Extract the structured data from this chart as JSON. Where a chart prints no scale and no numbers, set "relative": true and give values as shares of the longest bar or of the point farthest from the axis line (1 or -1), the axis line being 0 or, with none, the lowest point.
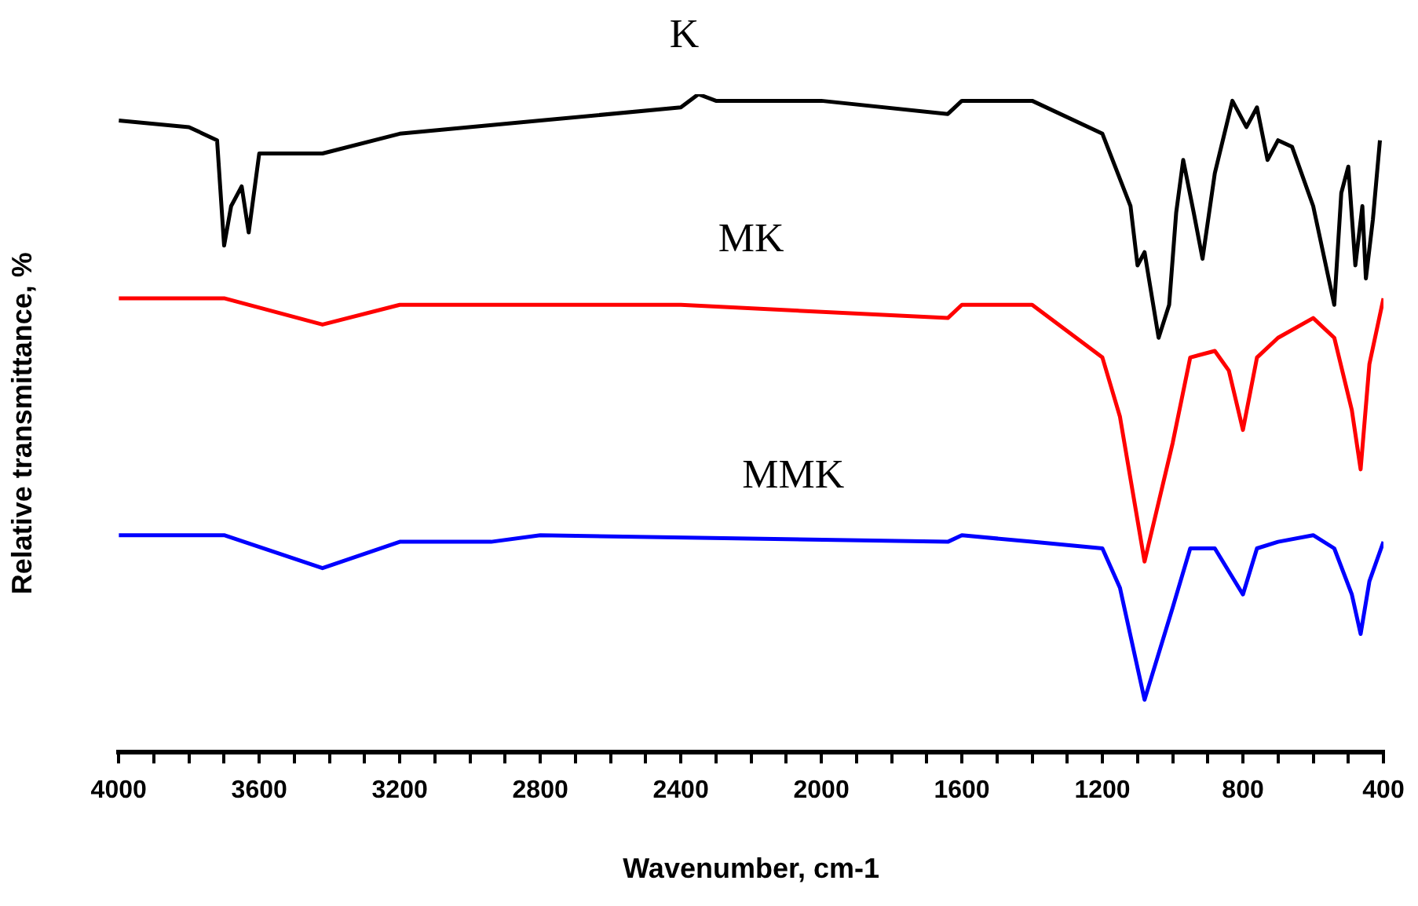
{
  "chart_data": {
    "type": "line",
    "xlabel": "Wavenumber, cm-1",
    "ylabel": "Relative transmittance, %",
    "relative": true,
    "xlim": [
      4000,
      400
    ],
    "xticks": [
      4000,
      {
        "value": 3900,
        "label": null
      },
      {
        "value": 3800,
        "label": null
      },
      {
        "value": 3700,
        "label": null
      },
      3600,
      {
        "value": 3500,
        "label": null
      },
      {
        "value": 3400,
        "label": null
      },
      {
        "value": 3300,
        "label": null
      },
      3200,
      {
        "value": 3100,
        "label": null
      },
      {
        "value": 3000,
        "label": null
      },
      {
        "value": 2900,
        "label": null
      },
      2800,
      {
        "value": 2700,
        "label": null
      },
      {
        "value": 2600,
        "label": null
      },
      {
        "value": 2500,
        "label": null
      },
      2400,
      {
        "value": 2300,
        "label": null
      },
      {
        "value": 2200,
        "label": null
      },
      {
        "value": 2100,
        "label": null
      },
      2000,
      {
        "value": 1900,
        "label": null
      },
      {
        "value": 1800,
        "label": null
      },
      {
        "value": 1700,
        "label": null
      },
      1600,
      {
        "value": 1500,
        "label": null
      },
      {
        "value": 1400,
        "label": null
      },
      {
        "value": 1300,
        "label": null
      },
      1200,
      {
        "value": 1100,
        "label": null
      },
      {
        "value": 1000,
        "label": null
      },
      {
        "value": 900,
        "label": null
      },
      800,
      {
        "value": 700,
        "label": null
      },
      {
        "value": 600,
        "label": null
      },
      {
        "value": 500,
        "label": null
      },
      400
    ],
    "grid": false,
    "legend": false,
    "marker": "none",
    "line_style": "solid",
    "series": [
      {
        "name": "K",
        "color": "#000000",
        "x": [
          4000,
          3800,
          3720,
          3700,
          3680,
          3650,
          3630,
          3600,
          3500,
          3420,
          3200,
          2800,
          2400,
          2350,
          2300,
          2000,
          1640,
          1600,
          1400,
          1200,
          1120,
          1100,
          1080,
          1040,
          1010,
          990,
          970,
          940,
          915,
          880,
          830,
          790,
          760,
          730,
          700,
          660,
          600,
          540,
          520,
          500,
          480,
          460,
          450,
          430,
          410
        ],
        "values": [
          0.96,
          0.95,
          0.93,
          0.77,
          0.83,
          0.86,
          0.79,
          0.91,
          0.91,
          0.91,
          0.94,
          0.96,
          0.98,
          1.0,
          0.99,
          0.99,
          0.97,
          0.99,
          0.99,
          0.94,
          0.83,
          0.74,
          0.76,
          0.63,
          0.68,
          0.82,
          0.9,
          0.82,
          0.75,
          0.88,
          0.99,
          0.95,
          0.98,
          0.9,
          0.93,
          0.92,
          0.83,
          0.68,
          0.85,
          0.89,
          0.74,
          0.83,
          0.72,
          0.81,
          0.93
        ]
      },
      {
        "name": "MK",
        "color": "#ff0000",
        "x": [
          4000,
          3700,
          3420,
          3200,
          2800,
          2400,
          1640,
          1600,
          1400,
          1200,
          1150,
          1080,
          1000,
          950,
          880,
          840,
          800,
          760,
          700,
          600,
          540,
          490,
          465,
          440,
          400
        ],
        "values": [
          0.69,
          0.69,
          0.65,
          0.68,
          0.68,
          0.68,
          0.66,
          0.68,
          0.68,
          0.6,
          0.51,
          0.29,
          0.47,
          0.6,
          0.61,
          0.58,
          0.49,
          0.6,
          0.63,
          0.66,
          0.63,
          0.52,
          0.43,
          0.59,
          0.69
        ]
      },
      {
        "name": "MMK",
        "color": "#0000ff",
        "x": [
          4000,
          3700,
          3420,
          3200,
          2940,
          2800,
          1640,
          1600,
          1400,
          1200,
          1150,
          1080,
          1000,
          950,
          880,
          800,
          760,
          700,
          600,
          540,
          490,
          465,
          440,
          400
        ],
        "values": [
          0.33,
          0.33,
          0.28,
          0.32,
          0.32,
          0.33,
          0.32,
          0.33,
          0.32,
          0.31,
          0.25,
          0.08,
          0.22,
          0.31,
          0.31,
          0.24,
          0.31,
          0.32,
          0.33,
          0.31,
          0.24,
          0.18,
          0.26,
          0.32
        ]
      }
    ]
  }
}
